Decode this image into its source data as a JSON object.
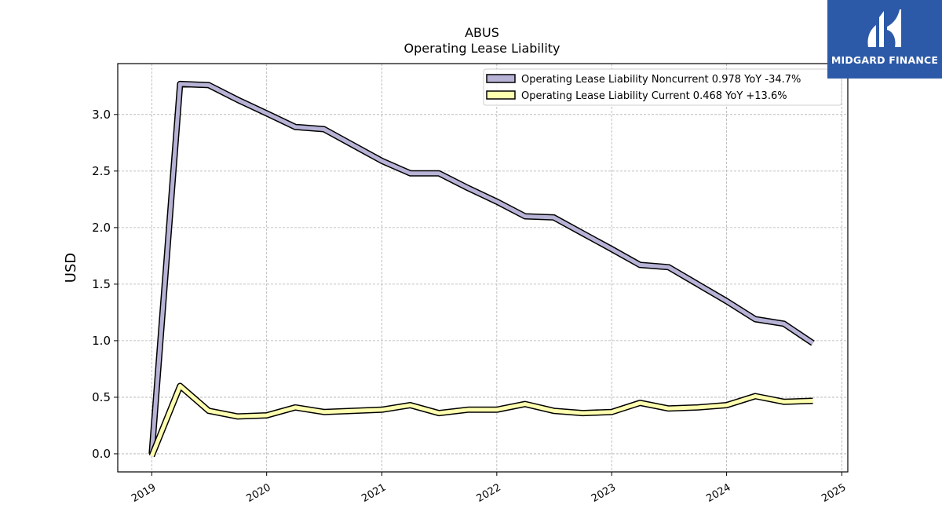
{
  "chart_data": {
    "type": "line",
    "ticker": "ABUS",
    "title": "Operating Lease Liability",
    "ylabel": "USD",
    "xlabel": "",
    "x": [
      "2019-01-01",
      "2019-04-01",
      "2019-07-01",
      "2019-10-01",
      "2020-01-01",
      "2020-04-01",
      "2020-07-01",
      "2020-10-01",
      "2021-01-01",
      "2021-04-01",
      "2021-07-01",
      "2021-10-01",
      "2022-01-01",
      "2022-04-01",
      "2022-07-01",
      "2022-10-01",
      "2023-01-01",
      "2023-04-01",
      "2023-07-01",
      "2023-10-01",
      "2024-01-01",
      "2024-04-01",
      "2024-07-01",
      "2024-10-01"
    ],
    "series": [
      {
        "name": "Operating Lease Liability Noncurrent  0.978 YoY -34.7%",
        "color": "#b7b3d6",
        "values": [
          0.0,
          3.27,
          3.26,
          3.13,
          3.01,
          2.89,
          2.87,
          2.73,
          2.59,
          2.48,
          2.48,
          2.35,
          2.23,
          2.1,
          2.09,
          1.95,
          1.81,
          1.67,
          1.65,
          1.5,
          1.35,
          1.19,
          1.15,
          0.978
        ]
      },
      {
        "name": "Operating Lease Liability Current  0.468 YoY +13.6%",
        "color": "#ffffb0",
        "values": [
          -0.02,
          0.6,
          0.38,
          0.33,
          0.34,
          0.41,
          0.37,
          0.38,
          0.39,
          0.43,
          0.36,
          0.39,
          0.39,
          0.44,
          0.38,
          0.36,
          0.37,
          0.45,
          0.4,
          0.41,
          0.43,
          0.51,
          0.46,
          0.468
        ]
      }
    ],
    "x_ticks": [
      "2019",
      "2020",
      "2021",
      "2022",
      "2023",
      "2024",
      "2025"
    ],
    "y_ticks": [
      "0.0",
      "0.5",
      "1.0",
      "1.5",
      "2.0",
      "2.5",
      "3.0"
    ],
    "ylim": [
      -0.16,
      3.45
    ],
    "xlim": [
      "2018-09-15",
      "2025-01-20"
    ],
    "grid": true,
    "legend_position": "top-right"
  },
  "logo": {
    "text": "MIDGARD FINANCE"
  }
}
